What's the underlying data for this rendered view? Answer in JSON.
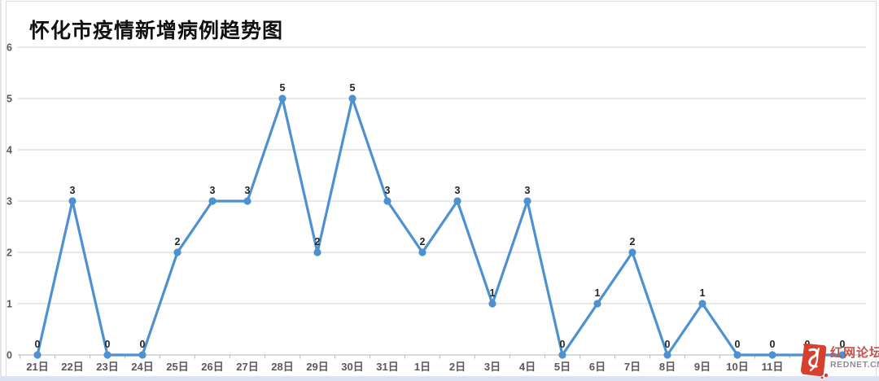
{
  "chart_data": {
    "type": "line",
    "title": "怀化市疫情新增病例趋势图",
    "categories": [
      "21日",
      "22日",
      "23日",
      "24日",
      "25日",
      "26日",
      "27日",
      "28日",
      "29日",
      "30日",
      "31日",
      "1日",
      "2日",
      "3日",
      "4日",
      "5日",
      "6日",
      "7日",
      "8日",
      "9日",
      "10日",
      "11日",
      "",
      ""
    ],
    "values": [
      0,
      3,
      0,
      0,
      2,
      3,
      3,
      5,
      2,
      5,
      3,
      2,
      3,
      1,
      3,
      0,
      1,
      2,
      0,
      1,
      0,
      0,
      0,
      0
    ],
    "xlabel": "",
    "ylabel": "",
    "ylim": [
      0,
      6
    ],
    "yticks": [
      0,
      1,
      2,
      3,
      4,
      5,
      6
    ],
    "grid": "horizontal",
    "legend": "none",
    "marker": "circle",
    "data_labels": "above"
  },
  "colors": {
    "line": "#4e91d0",
    "grid": "#d9d9d9",
    "axis": "#c3c3c3",
    "axis_label": "#595959",
    "data_label": "#262626",
    "title": "#111111",
    "watermark_red": "#c4524a",
    "watermark_logo": "#d6402c",
    "watermark_gray": "#8c8c8c",
    "bottom_strip": "#d9e3f2"
  },
  "watermark": {
    "site_name": "红网论坛",
    "site_domain": "REDNET.CN"
  }
}
